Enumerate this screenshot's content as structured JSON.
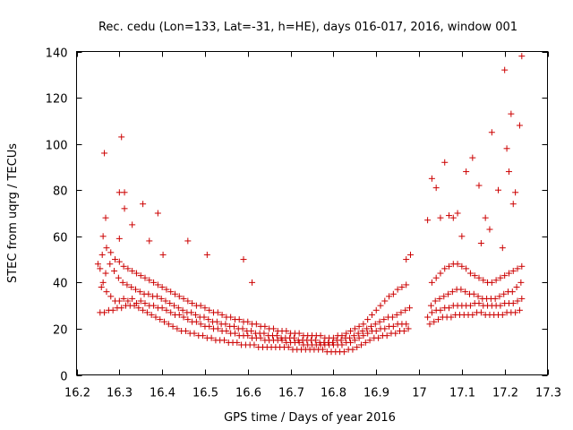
{
  "chart_data": {
    "type": "scatter",
    "title": "Rec. cedu (Lon=133, Lat=-31, h=HE), days 016-017, 2016, window 001",
    "xlabel": "GPS time / Days of year 2016",
    "ylabel": "STEC from uqrg / TECUs",
    "xlim": [
      16.2,
      17.3
    ],
    "ylim": [
      0,
      140
    ],
    "xticks": [
      16.2,
      16.3,
      16.4,
      16.5,
      16.6,
      16.7,
      16.8,
      16.9,
      17.0,
      17.1,
      17.2,
      17.3
    ],
    "xtick_labels": [
      "16.2",
      "16.3",
      "16.4",
      "16.5",
      "16.6",
      "16.7",
      "16.8",
      "16.9",
      "17",
      "17.1",
      "17.2",
      "17.3"
    ],
    "yticks": [
      0,
      20,
      40,
      60,
      80,
      100,
      120,
      140
    ],
    "ytick_labels": [
      "0",
      "20",
      "40",
      "60",
      "80",
      "100",
      "120",
      "140"
    ],
    "grid": false,
    "legend": "none",
    "marker": "+",
    "color": "#cc0000",
    "series": [
      {
        "x": [
          16.255,
          16.265,
          16.275,
          16.285,
          16.295,
          16.305,
          16.315,
          16.325,
          16.335,
          16.345,
          16.355,
          16.365,
          16.375,
          16.385,
          16.395,
          16.405,
          16.415,
          16.425,
          16.435,
          16.445,
          16.455,
          16.465,
          16.475,
          16.485,
          16.495,
          16.505,
          16.515,
          16.525,
          16.535,
          16.545,
          16.555,
          16.565,
          16.575,
          16.585,
          16.595,
          16.605,
          16.615,
          16.625,
          16.635,
          16.645,
          16.655,
          16.665,
          16.675,
          16.685,
          16.695,
          16.705,
          16.715,
          16.725,
          16.735,
          16.745,
          16.755,
          16.765,
          16.775,
          16.785,
          16.795,
          16.805,
          16.815,
          16.825,
          16.835,
          16.845,
          16.855,
          16.865,
          16.875,
          16.885,
          16.895,
          16.905,
          16.915,
          16.925,
          16.935,
          16.945,
          16.955,
          16.965,
          16.975,
          17.025,
          17.035,
          17.045,
          17.055,
          17.065,
          17.075,
          17.085,
          17.095,
          17.105,
          17.115,
          17.125,
          17.135,
          17.145,
          17.155,
          17.165,
          17.175,
          17.185,
          17.195,
          17.205,
          17.215,
          17.225,
          17.235,
          16.255,
          16.262,
          16.27,
          16.28,
          16.29,
          16.3,
          16.31,
          16.32,
          16.33,
          16.34,
          16.35,
          16.36,
          16.37,
          16.38,
          16.39,
          16.4,
          16.41,
          16.42,
          16.43,
          16.44,
          16.45,
          16.46,
          16.47,
          16.48,
          16.49,
          16.5,
          16.51,
          16.52,
          16.53,
          16.54,
          16.55,
          16.56,
          16.57,
          16.58,
          16.59,
          16.6,
          16.61,
          16.62,
          16.63,
          16.64,
          16.65,
          16.66,
          16.67,
          16.68,
          16.69,
          16.7,
          16.71,
          16.72,
          16.73,
          16.74,
          16.75,
          16.76,
          16.77,
          16.78,
          16.79,
          16.8,
          16.81,
          16.82,
          16.83,
          16.84,
          16.85,
          16.86,
          16.87,
          16.88,
          16.89,
          16.9,
          16.91,
          16.92,
          16.93,
          16.94,
          16.95,
          16.96,
          16.97,
          17.02,
          17.03,
          17.04,
          17.05,
          17.06,
          17.07,
          17.08,
          17.09,
          17.1,
          17.11,
          17.12,
          17.13,
          17.14,
          17.15,
          17.16,
          17.17,
          17.18,
          17.19,
          17.2,
          17.21,
          17.22,
          17.23,
          17.24,
          16.258,
          16.268,
          16.278,
          16.288,
          16.298,
          16.308,
          16.318,
          16.328,
          16.338,
          16.348,
          16.358,
          16.368,
          16.378,
          16.388,
          16.398,
          16.408,
          16.418,
          16.428,
          16.438,
          16.448,
          16.458,
          16.468,
          16.478,
          16.488,
          16.498,
          16.508,
          16.518,
          16.528,
          16.538,
          16.548,
          16.558,
          16.568,
          16.578,
          16.588,
          16.598,
          16.608,
          16.618,
          16.628,
          16.638,
          16.648,
          16.658,
          16.668,
          16.678,
          16.688,
          16.698,
          16.708,
          16.718,
          16.728,
          16.738,
          16.748,
          16.758,
          16.768,
          16.778,
          16.788,
          16.798,
          16.808,
          16.818,
          16.828,
          16.838,
          16.848,
          16.858,
          16.868,
          16.878,
          16.888,
          16.898,
          16.908,
          16.918,
          16.928,
          16.938,
          16.948,
          16.958,
          16.968,
          16.978,
          17.028,
          17.038,
          17.048,
          17.058,
          17.068,
          17.078,
          17.088,
          17.098,
          17.108,
          17.118,
          17.128,
          17.138,
          17.148,
          17.158,
          17.168,
          17.178,
          17.188,
          17.198,
          17.208,
          17.218,
          17.228,
          17.238,
          16.26,
          16.27,
          16.28,
          16.29,
          16.3,
          16.31,
          16.32,
          16.33,
          16.34,
          16.35,
          16.36,
          16.37,
          16.38,
          16.39,
          16.4,
          16.41,
          16.42,
          16.43,
          16.44,
          16.45,
          16.46,
          16.47,
          16.48,
          16.49,
          16.5,
          16.51,
          16.52,
          16.53,
          16.54,
          16.55,
          16.56,
          16.57,
          16.58,
          16.59,
          16.6,
          16.61,
          16.62,
          16.63,
          16.64,
          16.65,
          16.66,
          16.67,
          16.68,
          16.69,
          16.7,
          16.71,
          16.72,
          16.73,
          16.74,
          16.75,
          16.76,
          16.77,
          16.78,
          16.79,
          16.8,
          16.81,
          16.82,
          16.83,
          16.84,
          16.85,
          16.86,
          16.87,
          16.88,
          16.89,
          16.9,
          16.91,
          16.92,
          16.93,
          16.94,
          16.95,
          16.96,
          16.97,
          17.03,
          17.04,
          17.05,
          17.06,
          17.07,
          17.08,
          17.09,
          17.1,
          17.11,
          17.12,
          17.13,
          17.14,
          17.15,
          17.16,
          17.17,
          17.18,
          17.19,
          17.2,
          17.21,
          17.22,
          17.23,
          17.24,
          16.265,
          16.305,
          16.312,
          16.33,
          16.355,
          16.37,
          16.39,
          16.3,
          16.402,
          16.46,
          16.505,
          16.59,
          16.61,
          16.25,
          16.262,
          16.268,
          16.3,
          16.312,
          16.97,
          16.98,
          17.02,
          17.03,
          17.05,
          17.06,
          17.09,
          17.11,
          17.125,
          17.14,
          17.155,
          17.17,
          17.185,
          17.195,
          17.205,
          17.215,
          17.225,
          17.235,
          17.24,
          17.2,
          17.21,
          17.22,
          17.165,
          17.145,
          17.1,
          17.08,
          17.07,
          17.04
        ],
        "y": [
          27,
          27,
          28,
          28,
          29,
          29,
          30,
          30,
          30,
          29,
          28,
          27,
          26,
          25,
          24,
          23,
          22,
          21,
          20,
          19,
          19,
          18,
          18,
          17,
          17,
          16,
          16,
          15,
          15,
          15,
          14,
          14,
          14,
          13,
          13,
          13,
          13,
          12,
          12,
          12,
          12,
          12,
          12,
          12,
          12,
          11,
          11,
          11,
          11,
          11,
          11,
          11,
          11,
          10,
          10,
          10,
          10,
          10,
          11,
          11,
          12,
          13,
          14,
          15,
          16,
          16,
          17,
          17,
          18,
          18,
          19,
          19,
          20,
          22,
          23,
          24,
          25,
          25,
          25,
          26,
          26,
          26,
          26,
          26,
          27,
          27,
          26,
          26,
          26,
          26,
          26,
          27,
          27,
          27,
          28,
          46,
          40,
          36,
          34,
          32,
          32,
          33,
          32,
          33,
          31,
          32,
          31,
          30,
          30,
          29,
          29,
          28,
          27,
          26,
          26,
          25,
          24,
          23,
          23,
          22,
          21,
          21,
          20,
          20,
          19,
          19,
          18,
          18,
          17,
          17,
          17,
          16,
          16,
          16,
          15,
          15,
          15,
          15,
          15,
          14,
          14,
          14,
          14,
          13,
          13,
          13,
          13,
          13,
          13,
          13,
          13,
          13,
          13,
          14,
          14,
          15,
          16,
          17,
          18,
          19,
          19,
          20,
          20,
          21,
          21,
          22,
          22,
          22,
          25,
          27,
          28,
          28,
          29,
          29,
          30,
          30,
          30,
          30,
          30,
          31,
          31,
          30,
          30,
          30,
          30,
          30,
          31,
          31,
          31,
          32,
          33,
          38,
          44,
          48,
          45,
          42,
          40,
          39,
          38,
          37,
          36,
          35,
          35,
          34,
          34,
          33,
          32,
          31,
          30,
          29,
          28,
          27,
          27,
          26,
          25,
          25,
          24,
          23,
          23,
          22,
          22,
          21,
          21,
          20,
          20,
          19,
          19,
          18,
          18,
          18,
          17,
          17,
          17,
          16,
          16,
          16,
          16,
          15,
          15,
          15,
          15,
          15,
          14,
          14,
          14,
          14,
          15,
          15,
          16,
          16,
          17,
          18,
          19,
          20,
          21,
          22,
          23,
          24,
          25,
          25,
          26,
          27,
          28,
          29,
          30,
          32,
          33,
          34,
          35,
          36,
          37,
          37,
          36,
          35,
          35,
          34,
          33,
          33,
          33,
          33,
          34,
          35,
          36,
          36,
          38,
          40,
          52,
          55,
          53,
          50,
          49,
          47,
          46,
          45,
          44,
          43,
          42,
          41,
          40,
          39,
          38,
          37,
          36,
          35,
          34,
          33,
          32,
          31,
          30,
          30,
          29,
          28,
          27,
          27,
          26,
          25,
          25,
          24,
          24,
          23,
          23,
          22,
          22,
          21,
          21,
          20,
          20,
          19,
          19,
          19,
          18,
          18,
          18,
          17,
          17,
          17,
          17,
          17,
          16,
          16,
          16,
          17,
          17,
          18,
          19,
          20,
          21,
          22,
          24,
          26,
          28,
          30,
          32,
          34,
          35,
          37,
          38,
          39,
          40,
          42,
          44,
          46,
          47,
          48,
          48,
          47,
          46,
          44,
          43,
          42,
          41,
          40,
          40,
          41,
          42,
          43,
          44,
          45,
          46,
          47,
          96,
          103,
          79,
          65,
          74,
          58,
          70,
          59,
          52,
          58,
          52,
          50,
          40,
          48,
          60,
          68,
          79,
          72,
          50,
          52,
          67,
          85,
          68,
          92,
          70,
          88,
          94,
          82,
          68,
          105,
          80,
          55,
          98,
          113,
          79,
          108,
          138,
          132,
          88,
          74,
          63,
          57,
          60,
          68,
          69,
          81
        ]
      }
    ]
  }
}
